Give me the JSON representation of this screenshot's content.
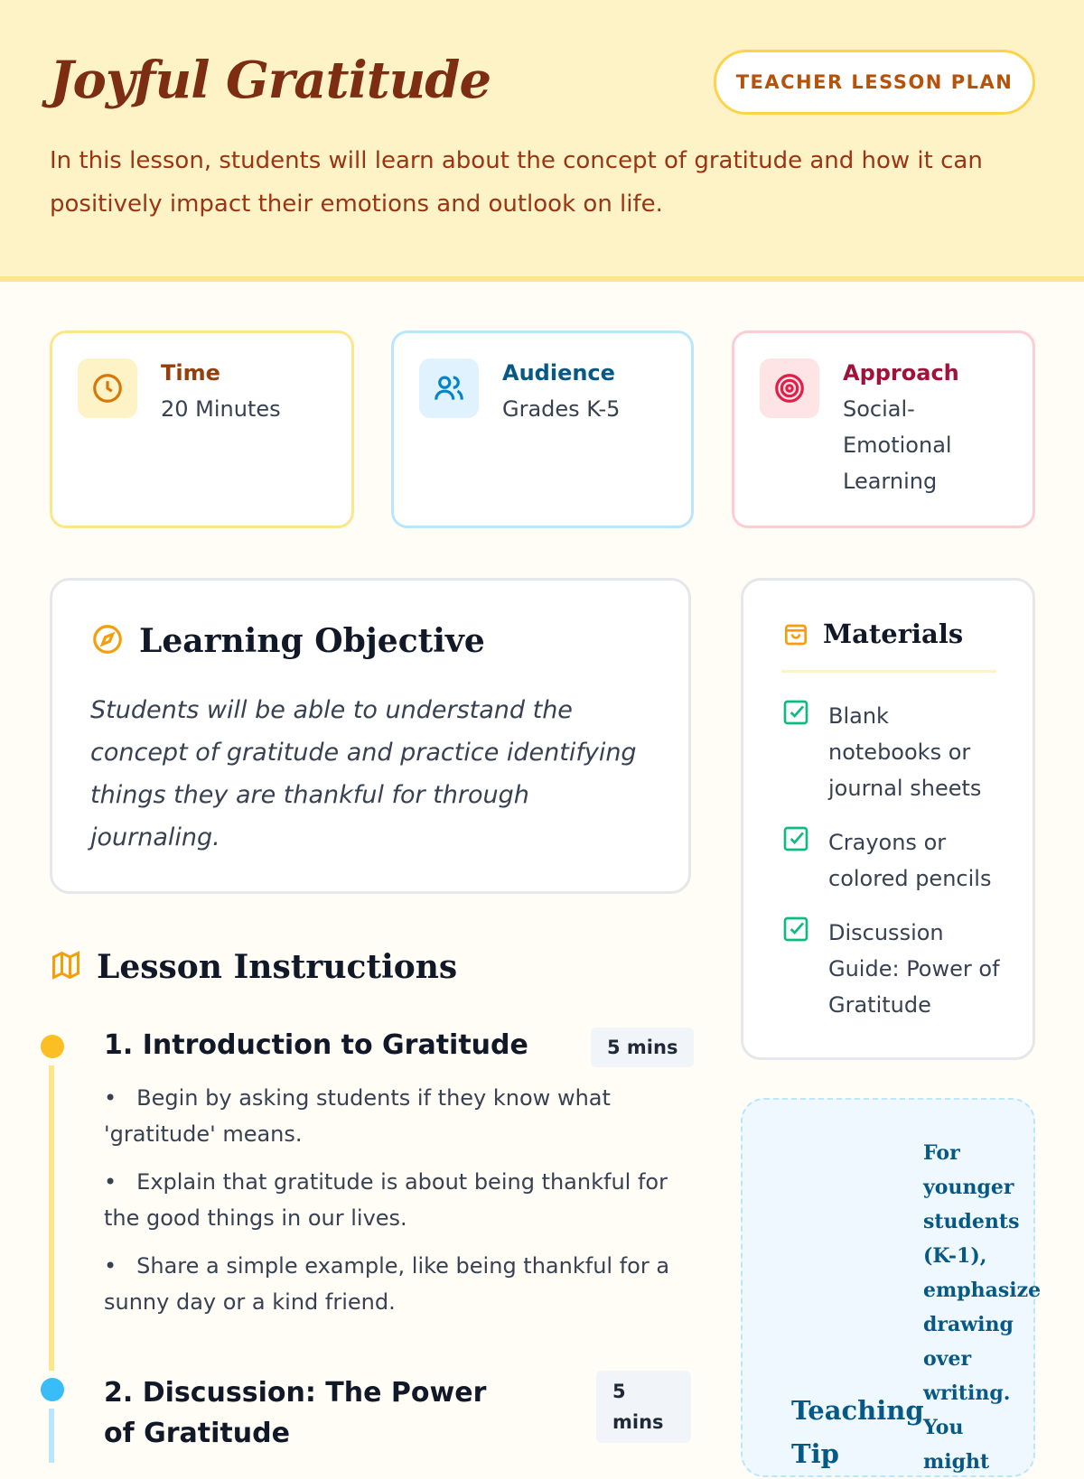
{
  "header": {
    "title": "Joyful Gratitude",
    "badge": "TEACHER LESSON PLAN",
    "intro": "In this lesson, students will learn about the concept of gratitude and how it can positively impact their emotions and outlook on life."
  },
  "cards": [
    {
      "label": "Time",
      "value": "20 Minutes",
      "icon": "clock-icon",
      "color": "#fde68a"
    },
    {
      "label": "Audience",
      "value": "Grades K-5",
      "icon": "users-icon",
      "color": "#bae6fd"
    },
    {
      "label": "Approach",
      "value": "Social-Emotional Learning",
      "icon": "target-icon",
      "color": "#fecdd3"
    }
  ],
  "objective": {
    "title": "Learning Objective",
    "text": "Students will be able to understand the concept of gratitude and practice identifying things they are thankful for through journaling."
  },
  "materials": {
    "title": "Materials",
    "items": [
      "Blank notebooks or journal sheets",
      "Crayons or colored pencils",
      "Discussion Guide: Power of Gratitude"
    ]
  },
  "instructions": {
    "title": "Lesson Instructions",
    "steps": [
      {
        "title": "1. Introduction to Gratitude",
        "duration": "5 mins",
        "bullets": [
          "Begin by asking students if they know what 'gratitude' means.",
          "Explain that gratitude is about being thankful for the good things in our lives.",
          "Share a simple example, like being thankful for a sunny day or a kind friend."
        ]
      },
      {
        "title": "2. Discussion: The Power of Gratitude",
        "duration": "5 mins",
        "bullets": []
      }
    ]
  },
  "tip": {
    "title": "Teaching Tip",
    "text": "For younger students (K-1), emphasize drawing over writing. You might"
  }
}
